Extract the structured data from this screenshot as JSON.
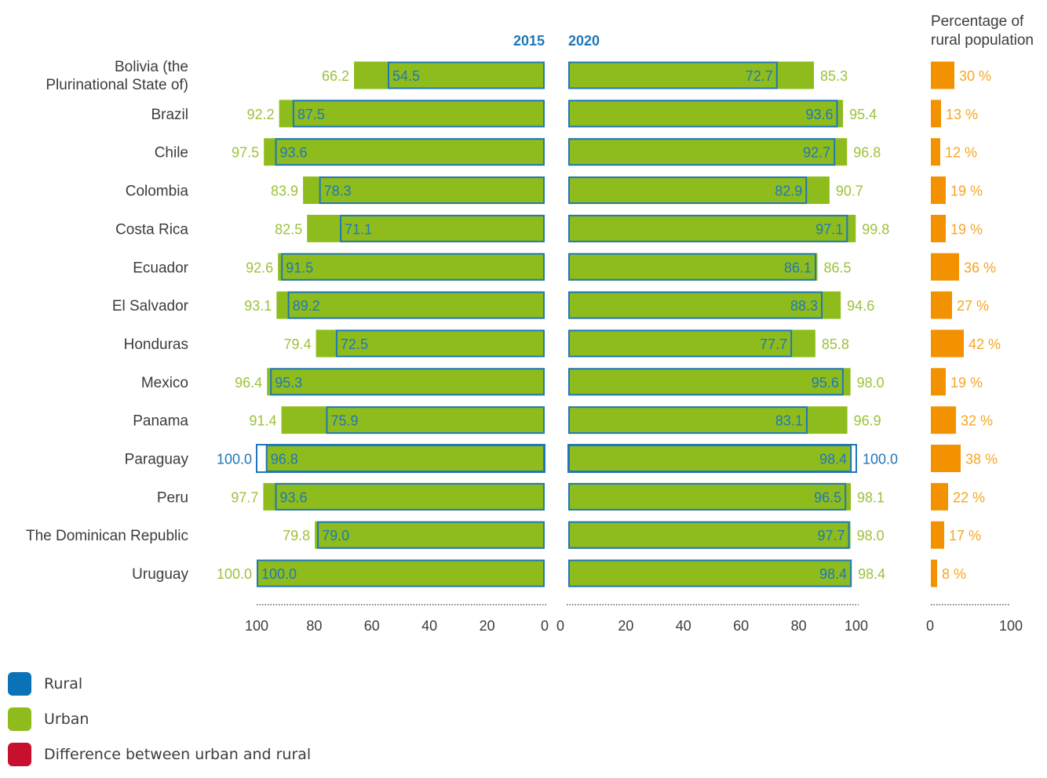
{
  "header": {
    "year_left": "2015",
    "year_right": "2020",
    "rural_title_line1": "Percentage of",
    "rural_title_line2": "rural population"
  },
  "colors": {
    "urban": "#8fbc1d",
    "urban_label": "#9cc23a",
    "rural_outline": "#1f77b9",
    "rural_label": "#1f77b9",
    "rural_pop": "#f39200",
    "rural_pop_label": "#f5a623",
    "difference": "#c8102e",
    "text": "#3c3c3c",
    "axis": "#3c3c3c"
  },
  "chart_data": {
    "type": "bar",
    "categories": [
      [
        "Bolivia (the",
        "Plurinational State of)"
      ],
      [
        "Brazil"
      ],
      [
        "Chile"
      ],
      [
        "Colombia"
      ],
      [
        "Costa Rica"
      ],
      [
        "Ecuador"
      ],
      [
        "El Salvador"
      ],
      [
        "Honduras"
      ],
      [
        "Mexico"
      ],
      [
        "Panama"
      ],
      [
        "Paraguay"
      ],
      [
        "Peru"
      ],
      [
        "The Dominican Republic"
      ],
      [
        "Uruguay"
      ]
    ],
    "series": [
      {
        "name": "Urban",
        "year": "2015",
        "values": [
          66.2,
          92.2,
          97.5,
          83.9,
          82.5,
          92.6,
          93.1,
          79.4,
          96.4,
          91.4,
          100.0,
          97.7,
          79.8,
          100.0
        ],
        "labels": [
          "66.2",
          "92.2",
          "97.5",
          "83.9",
          "82.5",
          "92.6",
          "93.1",
          "79.4",
          "96.4",
          "91.4",
          "100.0",
          "97.7",
          "79.8",
          "100.0"
        ]
      },
      {
        "name": "Rural",
        "year": "2015",
        "values": [
          54.5,
          87.5,
          93.6,
          78.3,
          71.1,
          91.5,
          89.2,
          72.5,
          95.3,
          75.9,
          96.8,
          93.6,
          79.0,
          100.0
        ],
        "labels": [
          "54.5",
          "87.5",
          "93.6",
          "78.3",
          "71.1",
          "91.5",
          "89.2",
          "72.5",
          "95.3",
          "75.9",
          "96.8",
          "93.6",
          "79.0",
          "100.0"
        ]
      },
      {
        "name": "Urban",
        "year": "2020",
        "values": [
          85.3,
          95.4,
          96.8,
          90.7,
          99.8,
          86.5,
          94.6,
          85.8,
          98.0,
          96.9,
          100.0,
          98.1,
          98.0,
          98.4
        ],
        "labels": [
          "85.3",
          "95.4",
          "96.8",
          "90.7",
          "99.8",
          "86.5",
          "94.6",
          "85.8",
          "98.0",
          "96.9",
          "100.0",
          "98.1",
          "98.0",
          "98.4"
        ]
      },
      {
        "name": "Rural",
        "year": "2020",
        "values": [
          72.7,
          93.6,
          92.7,
          82.9,
          97.1,
          86.1,
          88.3,
          77.7,
          95.6,
          83.1,
          98.4,
          96.5,
          97.7,
          98.4
        ],
        "labels": [
          "72.7",
          "93.6",
          "92.7",
          "82.9",
          "97.1",
          "86.1",
          "88.3",
          "77.7",
          "95.6",
          "83.1",
          "98.4",
          "96.5",
          "97.7",
          "98.4"
        ]
      },
      {
        "name": "Percentage of rural population",
        "values": [
          30,
          13,
          12,
          19,
          19,
          36,
          27,
          42,
          19,
          32,
          38,
          22,
          17,
          8
        ],
        "labels": [
          "30 %",
          "13 %",
          "12 %",
          "19 %",
          "19 %",
          "36 %",
          "27 %",
          "42 %",
          "19 %",
          "32 %",
          "38 %",
          "22 %",
          "17 %",
          "8 %"
        ]
      }
    ],
    "axes": {
      "left_ticks": [
        "100",
        "80",
        "60",
        "40",
        "20",
        "0"
      ],
      "right_ticks": [
        "0",
        "20",
        "40",
        "60",
        "80",
        "100"
      ],
      "pop_ticks": [
        "0",
        "100"
      ],
      "xlim": [
        0,
        100
      ]
    },
    "legend": {
      "placement": "bottom-left"
    }
  },
  "legend": [
    {
      "label": "Rural",
      "color": "#0a73b8"
    },
    {
      "label": "Urban",
      "color": "#8fbc1d"
    },
    {
      "label": "Difference between urban and rural",
      "color": "#c8102e"
    }
  ]
}
